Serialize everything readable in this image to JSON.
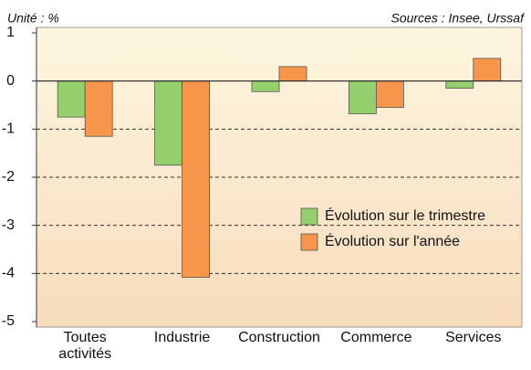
{
  "chart_data": {
    "type": "bar",
    "unit_note": "Unité : %",
    "source": "Sources : Insee, Urssaf",
    "categories": [
      "Toutes activités",
      "Industrie",
      "Construction",
      "Commerce",
      "Services"
    ],
    "series": [
      {
        "name": "Évolution sur le trimestre",
        "color": "#95cf6d",
        "values": [
          -0.75,
          -1.75,
          -0.22,
          -0.68,
          -0.15
        ]
      },
      {
        "name": "Évolution sur l'année",
        "color": "#f7964a",
        "values": [
          -1.15,
          -4.08,
          0.3,
          -0.55,
          0.47
        ]
      }
    ],
    "ylim": [
      -5,
      1
    ],
    "yticks": [
      -5,
      -4,
      -3,
      -2,
      -1,
      0,
      1
    ],
    "grid": true
  }
}
